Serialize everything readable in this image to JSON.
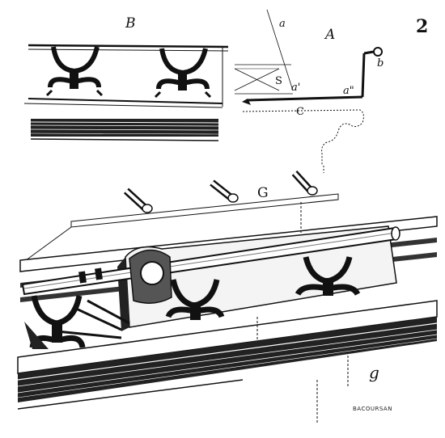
{
  "labels": {
    "figure_number": "2",
    "detail_b": "B",
    "detail_a": "A",
    "point_a": "a",
    "point_a_prime": "a'",
    "point_a_double_prime": "a\"",
    "point_b": "b",
    "point_s": "S",
    "point_c": "C",
    "label_g": "G",
    "monogram": "g"
  },
  "signature": "BACOURSAN"
}
